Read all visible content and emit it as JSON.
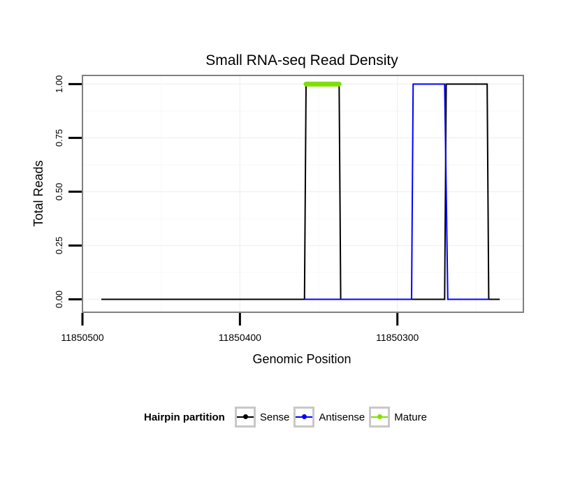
{
  "chart_data": {
    "type": "line",
    "title": "Small RNA-seq Read Density",
    "xlabel": "Genomic Position",
    "ylabel": "Total Reads",
    "x_reversed": true,
    "xlim": [
      11850500,
      11850220
    ],
    "ylim": [
      -0.06,
      1.04
    ],
    "x_ticks": [
      11850500,
      11850400,
      11850300
    ],
    "x_tick_labels": [
      "11850500",
      "11850400",
      "11850300"
    ],
    "y_ticks": [
      0,
      0.25,
      0.5,
      0.75,
      1.0
    ],
    "y_tick_labels": [
      "0.00",
      "0.25",
      "0.50",
      "0.75",
      "1.00"
    ],
    "series": [
      {
        "name": "Sense",
        "color": "#000000",
        "x": [
          11850488,
          11850359,
          11850358,
          11850337,
          11850336,
          11850270,
          11850269,
          11850243,
          11850242,
          11850235
        ],
        "y": [
          0,
          0,
          1,
          1,
          0,
          0,
          1,
          1,
          0,
          0
        ]
      },
      {
        "name": "Antisense",
        "color": "#0000ff",
        "x": [
          11850359,
          11850337,
          11850291,
          11850290,
          11850270,
          11850268,
          11850242
        ],
        "y": [
          0,
          0,
          0,
          1,
          1,
          0,
          0
        ]
      },
      {
        "name": "Mature",
        "color": "#7fe000",
        "x": [
          11850358,
          11850337
        ],
        "y": [
          1,
          1
        ]
      }
    ],
    "legend": {
      "title": "Hairpin partition",
      "position": "bottom",
      "entries": [
        "Sense",
        "Antisense",
        "Mature"
      ]
    }
  }
}
